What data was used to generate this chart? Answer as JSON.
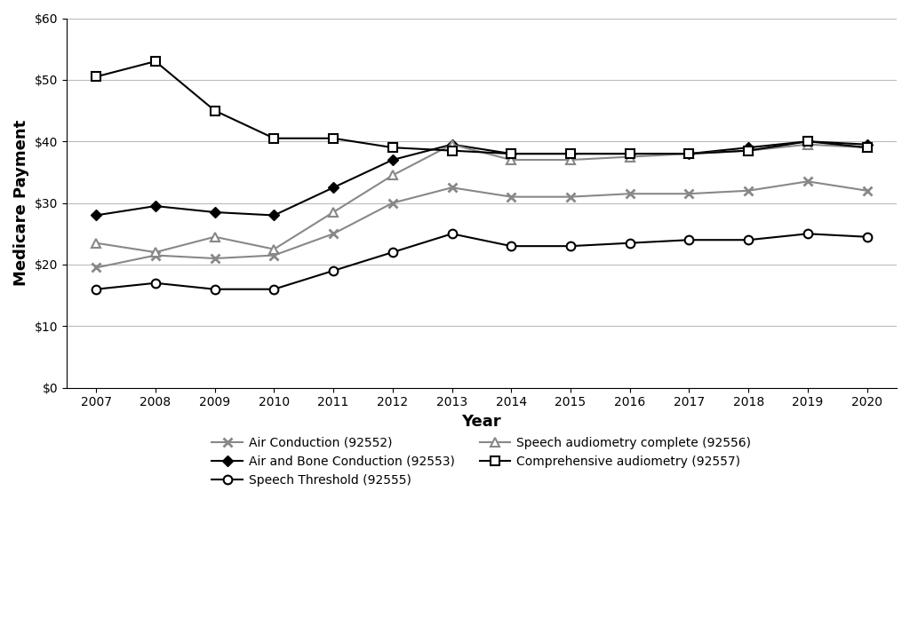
{
  "years": [
    2007,
    2008,
    2009,
    2010,
    2011,
    2012,
    2013,
    2014,
    2015,
    2016,
    2017,
    2018,
    2019,
    2020
  ],
  "series": [
    {
      "label": "Air Conduction (92552)",
      "values": [
        19.5,
        21.5,
        21.0,
        21.5,
        25.0,
        30.0,
        32.5,
        31.0,
        31.0,
        31.5,
        31.5,
        32.0,
        33.5,
        32.0
      ],
      "color": "#888888",
      "marker": "x",
      "markersize": 7,
      "markeredgewidth": 2.0,
      "linewidth": 1.5,
      "markerfacecolor": "#888888",
      "markeredgecolor": "#888888"
    },
    {
      "label": "Air and Bone Conduction (92553)",
      "values": [
        28.0,
        29.5,
        28.5,
        28.0,
        32.5,
        37.0,
        39.5,
        38.0,
        38.0,
        38.0,
        38.0,
        39.0,
        40.0,
        39.5
      ],
      "color": "#000000",
      "marker": "D",
      "markersize": 6,
      "markeredgewidth": 1.0,
      "linewidth": 1.5,
      "markerfacecolor": "#000000",
      "markeredgecolor": "#000000"
    },
    {
      "label": "Speech Threshold (92555)",
      "values": [
        16.0,
        17.0,
        16.0,
        16.0,
        19.0,
        22.0,
        25.0,
        23.0,
        23.0,
        23.5,
        24.0,
        24.0,
        25.0,
        24.5
      ],
      "color": "#000000",
      "marker": "o",
      "markersize": 7,
      "markeredgewidth": 1.5,
      "linewidth": 1.5,
      "markerfacecolor": "#ffffff",
      "markeredgecolor": "#000000"
    },
    {
      "label": "Speech audiometry complete (92556)",
      "values": [
        23.5,
        22.0,
        24.5,
        22.5,
        28.5,
        34.5,
        39.5,
        37.0,
        37.0,
        37.5,
        38.0,
        38.5,
        39.5,
        39.0
      ],
      "color": "#888888",
      "marker": "^",
      "markersize": 7,
      "markeredgewidth": 1.5,
      "linewidth": 1.5,
      "markerfacecolor": "#ffffff",
      "markeredgecolor": "#888888"
    },
    {
      "label": "Comprehensive audiometry (92557)",
      "values": [
        50.5,
        53.0,
        45.0,
        40.5,
        40.5,
        39.0,
        38.5,
        38.0,
        38.0,
        38.0,
        38.0,
        38.5,
        40.0,
        39.0
      ],
      "color": "#000000",
      "marker": "s",
      "markersize": 7,
      "markeredgewidth": 1.5,
      "linewidth": 1.5,
      "markerfacecolor": "#ffffff",
      "markeredgecolor": "#000000"
    }
  ],
  "legend_order": [
    0,
    1,
    2,
    3,
    4
  ],
  "legend_ncol": 2,
  "ylabel": "Medicare Payment",
  "xlabel": "Year",
  "ylim": [
    0,
    60
  ],
  "yticks": [
    0,
    10,
    20,
    30,
    40,
    50,
    60
  ],
  "ytick_labels": [
    "$0",
    "$10",
    "$20",
    "$30",
    "$40",
    "$50",
    "$60"
  ],
  "background_color": "#ffffff",
  "grid_color": "#bbbbbb",
  "figsize": [
    10.24,
    6.96
  ],
  "dpi": 100
}
